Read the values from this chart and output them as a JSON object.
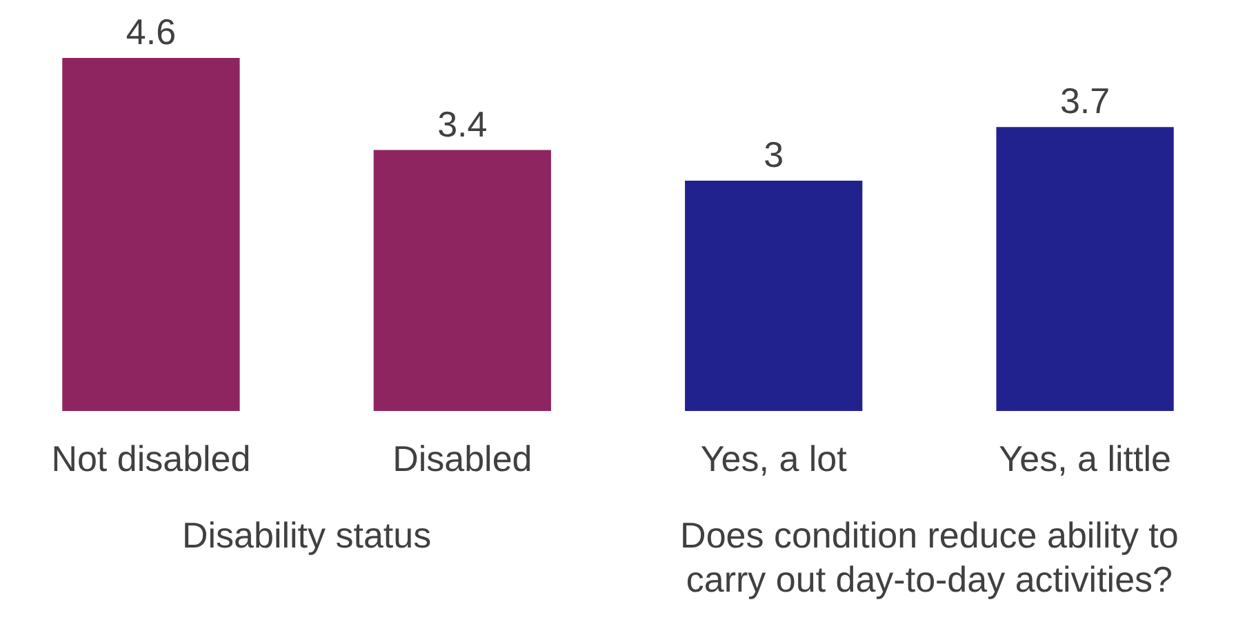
{
  "chart_data": {
    "type": "bar",
    "categories": [
      "Not disabled",
      "Disabled",
      "Yes, a lot",
      "Yes, a little"
    ],
    "values": [
      4.6,
      3.4,
      3,
      3.7
    ],
    "colors": [
      "#8e2560",
      "#8e2560",
      "#22228f",
      "#22228f"
    ],
    "data_labels": true,
    "annotations": [
      "Disability status",
      "Does condition reduce ability to carry out day-to-day activities?"
    ]
  }
}
